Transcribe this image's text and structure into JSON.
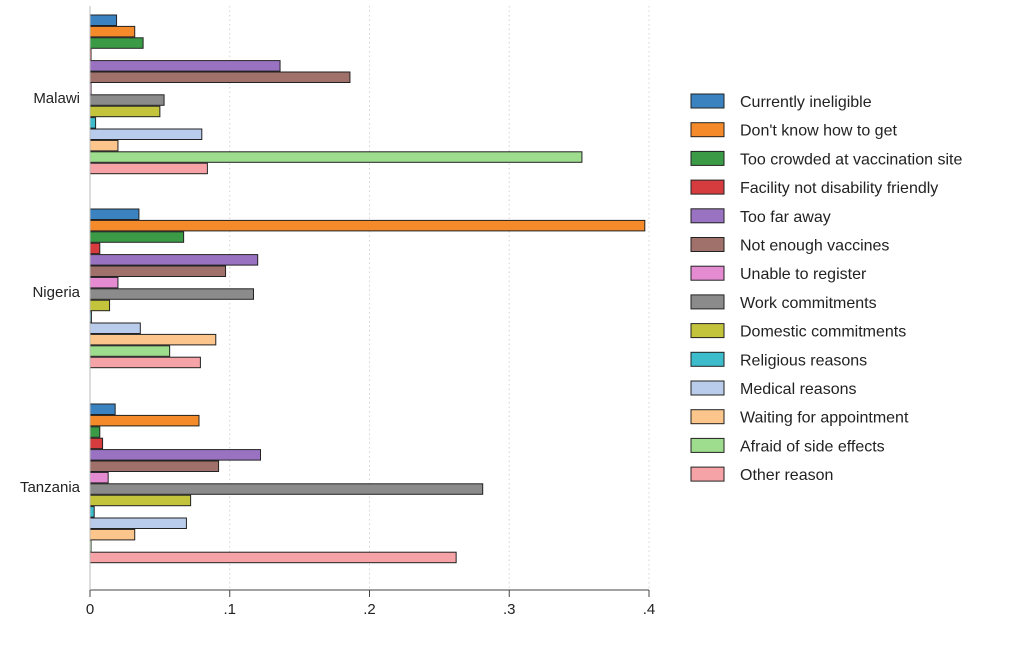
{
  "chart_data": {
    "type": "bar",
    "orientation": "horizontal",
    "categories": [
      "Malawi",
      "Nigeria",
      "Tanzania"
    ],
    "xlim": [
      0,
      0.4
    ],
    "x_ticks": [
      {
        "value": 0,
        "label": "0"
      },
      {
        "value": 0.1,
        "label": ".1"
      },
      {
        "value": 0.2,
        "label": ".2"
      },
      {
        "value": 0.3,
        "label": ".3"
      },
      {
        "value": 0.4,
        "label": ".4"
      }
    ],
    "grid": "vertical dotted",
    "legend_placement": "right",
    "series": [
      {
        "name": "Currently ineligible",
        "color": "#3a83c0",
        "values": [
          0.019,
          0.035,
          0.018
        ]
      },
      {
        "name": "Don't know how to get",
        "color": "#f58a2a",
        "values": [
          0.032,
          0.397,
          0.078
        ]
      },
      {
        "name": "Too crowded at vaccination site",
        "color": "#3a9a45",
        "values": [
          0.038,
          0.067,
          0.007
        ]
      },
      {
        "name": "Facility not disability friendly",
        "color": "#d63c3e",
        "values": [
          0.0,
          0.007,
          0.009
        ]
      },
      {
        "name": "Too far away",
        "color": "#9a72c2",
        "values": [
          0.136,
          0.12,
          0.122
        ]
      },
      {
        "name": "Not enough vaccines",
        "color": "#a0716a",
        "values": [
          0.186,
          0.097,
          0.092
        ]
      },
      {
        "name": "Unable to register",
        "color": "#e58bd2",
        "values": [
          0.0,
          0.02,
          0.013
        ]
      },
      {
        "name": "Work commitments",
        "color": "#8b8b8b",
        "values": [
          0.053,
          0.117,
          0.281
        ]
      },
      {
        "name": "Domestic commitments",
        "color": "#c4c43c",
        "values": [
          0.05,
          0.014,
          0.072
        ]
      },
      {
        "name": "Religious reasons",
        "color": "#3dbccc",
        "values": [
          0.004,
          0.001,
          0.003
        ]
      },
      {
        "name": "Medical reasons",
        "color": "#b9cceb",
        "values": [
          0.08,
          0.036,
          0.069
        ]
      },
      {
        "name": "Waiting for appointment",
        "color": "#fbc58c",
        "values": [
          0.02,
          0.09,
          0.032
        ]
      },
      {
        "name": "Afraid of side effects",
        "color": "#9edc8e",
        "values": [
          0.352,
          0.057,
          0.0
        ]
      },
      {
        "name": "Other reason",
        "color": "#f6a3a7",
        "values": [
          0.084,
          0.079,
          0.262
        ]
      }
    ]
  }
}
